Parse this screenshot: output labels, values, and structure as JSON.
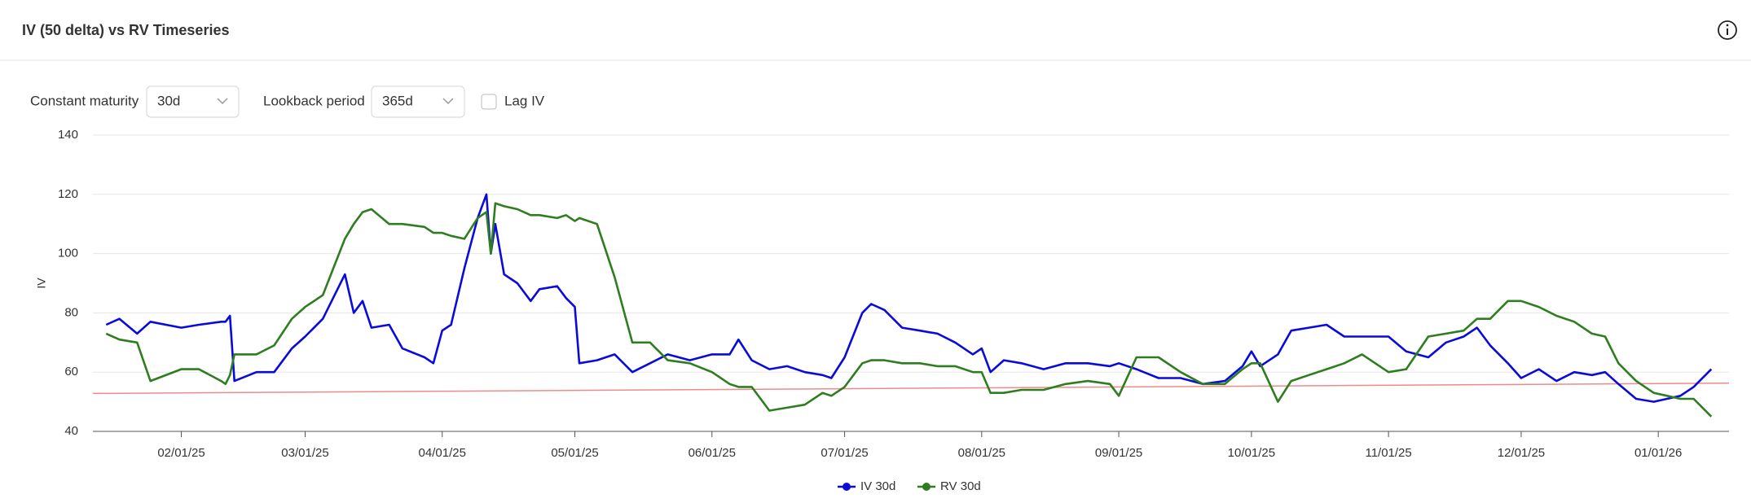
{
  "header": {
    "title": "IV (50 delta) vs RV Timeseries"
  },
  "controls": {
    "constant_maturity": {
      "label": "Constant maturity",
      "value": "30d"
    },
    "lookback_period": {
      "label": "Lookback period",
      "value": "365d"
    },
    "lag_iv": {
      "label": "Lag IV",
      "checked": false
    }
  },
  "chart_data": {
    "type": "line",
    "y_label": "IV",
    "x": [
      "2025-01-15",
      "2025-01-18",
      "2025-01-22",
      "2025-01-25",
      "2025-02-01",
      "2025-02-05",
      "2025-02-10",
      "2025-02-11",
      "2025-02-12",
      "2025-02-13",
      "2025-02-18",
      "2025-02-22",
      "2025-02-26",
      "2025-03-01",
      "2025-03-05",
      "2025-03-10",
      "2025-03-12",
      "2025-03-14",
      "2025-03-16",
      "2025-03-20",
      "2025-03-23",
      "2025-03-28",
      "2025-03-30",
      "2025-04-01",
      "2025-04-03",
      "2025-04-06",
      "2025-04-09",
      "2025-04-11",
      "2025-04-12",
      "2025-04-13",
      "2025-04-15",
      "2025-04-18",
      "2025-04-21",
      "2025-04-23",
      "2025-04-27",
      "2025-04-29",
      "2025-05-01",
      "2025-05-02",
      "2025-05-06",
      "2025-05-10",
      "2025-05-14",
      "2025-05-18",
      "2025-05-22",
      "2025-05-27",
      "2025-06-01",
      "2025-06-05",
      "2025-06-07",
      "2025-06-10",
      "2025-06-14",
      "2025-06-18",
      "2025-06-22",
      "2025-06-26",
      "2025-06-28",
      "2025-07-01",
      "2025-07-05",
      "2025-07-07",
      "2025-07-10",
      "2025-07-14",
      "2025-07-18",
      "2025-07-22",
      "2025-07-26",
      "2025-07-30",
      "2025-08-01",
      "2025-08-03",
      "2025-08-06",
      "2025-08-10",
      "2025-08-15",
      "2025-08-20",
      "2025-08-25",
      "2025-08-30",
      "2025-09-01",
      "2025-09-05",
      "2025-09-10",
      "2025-09-15",
      "2025-09-20",
      "2025-09-25",
      "2025-09-29",
      "2025-10-01",
      "2025-10-03",
      "2025-10-07",
      "2025-10-10",
      "2025-10-14",
      "2025-10-18",
      "2025-10-22",
      "2025-10-26",
      "2025-11-01",
      "2025-11-05",
      "2025-11-10",
      "2025-11-14",
      "2025-11-18",
      "2025-11-21",
      "2025-11-24",
      "2025-11-28",
      "2025-12-01",
      "2025-12-05",
      "2025-12-09",
      "2025-12-13",
      "2025-12-17",
      "2025-12-20",
      "2025-12-23",
      "2025-12-27",
      "2025-12-31",
      "2026-01-03",
      "2026-01-06",
      "2026-01-09",
      "2026-01-13"
    ],
    "series": [
      {
        "name": "IV 30d",
        "color": "#0a0adc",
        "values": [
          76,
          78,
          73,
          77,
          75,
          76,
          77,
          77,
          79,
          57,
          60,
          60,
          68,
          72,
          78,
          93,
          80,
          84,
          75,
          76,
          68,
          65,
          63,
          74,
          76,
          95,
          112,
          120,
          100,
          110,
          93,
          90,
          84,
          88,
          89,
          85,
          82,
          63,
          64,
          66,
          60,
          63,
          66,
          64,
          66,
          66,
          71,
          64,
          61,
          62,
          60,
          59,
          58,
          65,
          80,
          83,
          81,
          75,
          74,
          73,
          70,
          66,
          68,
          60,
          64,
          63,
          61,
          63,
          63,
          62,
          63,
          61,
          58,
          58,
          56,
          57,
          62,
          67,
          62,
          66,
          74,
          75,
          76,
          72,
          72,
          72,
          67,
          65,
          70,
          72,
          75,
          69,
          63,
          58,
          61,
          57,
          60,
          59,
          60,
          56,
          51,
          50,
          51,
          52,
          55,
          61
        ]
      },
      {
        "name": "RV 30d",
        "color": "#2e7d1f",
        "values": [
          73,
          71,
          70,
          57,
          61,
          61,
          57,
          56,
          59,
          66,
          66,
          69,
          78,
          82,
          86,
          105,
          110,
          114,
          115,
          110,
          110,
          109,
          107,
          107,
          106,
          105,
          112,
          114,
          100,
          117,
          116,
          115,
          113,
          113,
          112,
          113,
          111,
          112,
          110,
          92,
          70,
          70,
          64,
          63,
          60,
          56,
          55,
          55,
          47,
          48,
          49,
          53,
          52,
          55,
          63,
          64,
          64,
          63,
          63,
          62,
          62,
          60,
          60,
          53,
          53,
          54,
          54,
          56,
          57,
          56,
          52,
          65,
          65,
          60,
          56,
          56,
          61,
          63,
          63,
          50,
          57,
          59,
          61,
          63,
          66,
          60,
          61,
          72,
          73,
          74,
          78,
          78,
          84,
          84,
          82,
          79,
          77,
          73,
          72,
          63,
          57,
          53,
          52,
          51,
          51,
          45
        ]
      }
    ],
    "trend_line": {
      "color": "#f08a8a",
      "x": [
        "2025-01-12",
        "2026-01-17"
      ],
      "values": [
        52.8,
        56.3
      ]
    },
    "xlim": [
      "2025-01-12",
      "2026-01-17"
    ],
    "xticks": [
      {
        "value": "2025-02-01",
        "label": "02/01/25"
      },
      {
        "value": "2025-03-01",
        "label": "03/01/25"
      },
      {
        "value": "2025-04-01",
        "label": "04/01/25"
      },
      {
        "value": "2025-05-01",
        "label": "05/01/25"
      },
      {
        "value": "2025-06-01",
        "label": "06/01/25"
      },
      {
        "value": "2025-07-01",
        "label": "07/01/25"
      },
      {
        "value": "2025-08-01",
        "label": "08/01/25"
      },
      {
        "value": "2025-09-01",
        "label": "09/01/25"
      },
      {
        "value": "2025-10-01",
        "label": "10/01/25"
      },
      {
        "value": "2025-11-01",
        "label": "11/01/25"
      },
      {
        "value": "2025-12-01",
        "label": "12/01/25"
      },
      {
        "value": "2026-01-01",
        "label": "01/01/26"
      }
    ],
    "ylim": [
      40,
      140
    ],
    "yticks": [
      40,
      60,
      80,
      100,
      120,
      140
    ],
    "grid": true,
    "legend": "bottom"
  }
}
